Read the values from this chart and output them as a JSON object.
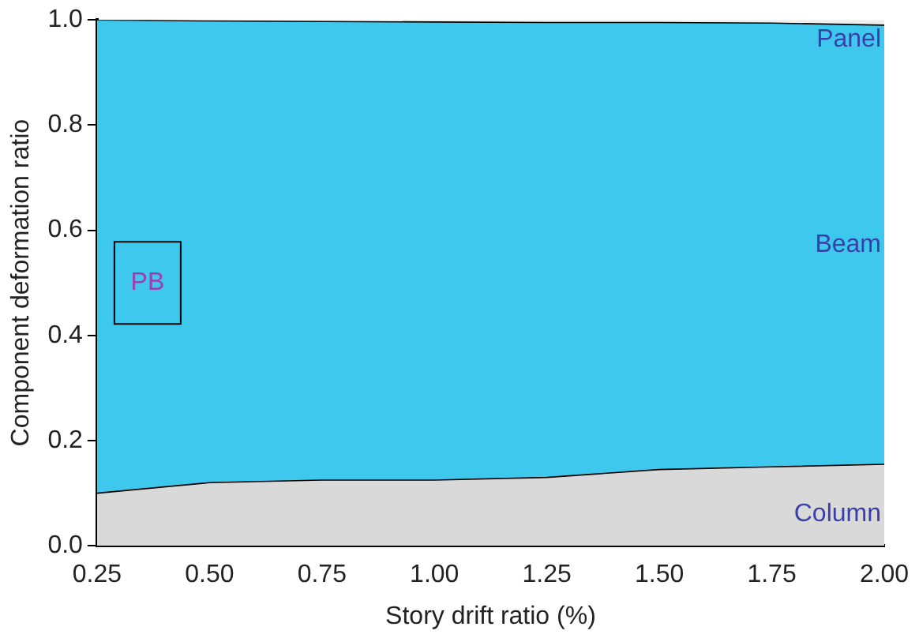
{
  "chart_data": {
    "type": "area",
    "stacked": true,
    "xlabel": "Story drift ratio (%)",
    "ylabel": "Component deformation ratio",
    "x": [
      0.25,
      0.5,
      0.75,
      1.0,
      1.25,
      1.5,
      1.75,
      2.0
    ],
    "series": [
      {
        "name": "Column",
        "color": "#d9d9d9",
        "values": [
          0.1,
          0.12,
          0.125,
          0.125,
          0.13,
          0.145,
          0.15,
          0.155
        ]
      },
      {
        "name": "Beam",
        "color": "#3fc8ee",
        "values": [
          0.9,
          0.878,
          0.872,
          0.871,
          0.865,
          0.85,
          0.844,
          0.835
        ]
      },
      {
        "name": "Panel",
        "color": "#eeeeee",
        "values": [
          0,
          0.002,
          0.003,
          0.004,
          0.005,
          0.005,
          0.006,
          0.01
        ]
      }
    ],
    "xlim": [
      0.25,
      2.0
    ],
    "xticks": [
      {
        "value": 0.25,
        "label": "0.25"
      },
      {
        "value": 0.5,
        "label": "0.50"
      },
      {
        "value": 0.75,
        "label": "0.75"
      },
      {
        "value": 1.0,
        "label": "1.00"
      },
      {
        "value": 1.25,
        "label": "1.25"
      },
      {
        "value": 1.5,
        "label": "1.50"
      },
      {
        "value": 1.75,
        "label": "1.75"
      },
      {
        "value": 2.0,
        "label": "2.00"
      }
    ],
    "ylim": [
      0,
      1
    ],
    "yticks": [
      {
        "value": 0,
        "label": "0.0"
      },
      {
        "value": 0.2,
        "label": "0.2"
      },
      {
        "value": 0.4,
        "label": "0.4"
      },
      {
        "value": 0.6,
        "label": "0.6"
      },
      {
        "value": 0.8,
        "label": "0.8"
      },
      {
        "value": 1,
        "label": "1.0"
      }
    ],
    "annotations": [
      "PB"
    ],
    "grid": false,
    "legend": false
  }
}
